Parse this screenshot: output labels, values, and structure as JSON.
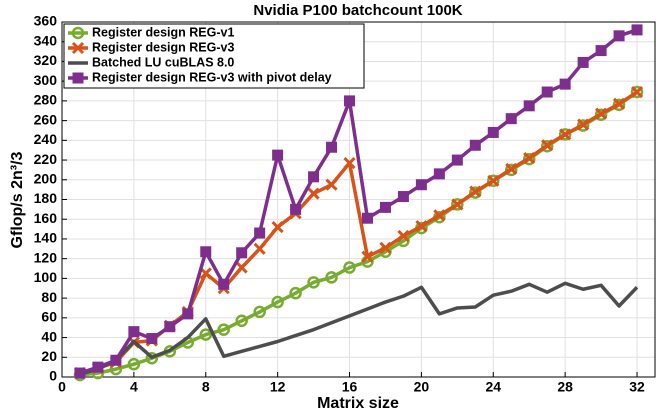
{
  "chart_data": {
    "type": "line",
    "title": "Nvidia P100 batchcount 100K",
    "x_label": "Matrix size",
    "y_label": "Gflop/s 2n³/3",
    "x": [
      1,
      2,
      3,
      4,
      5,
      6,
      7,
      8,
      9,
      10,
      11,
      12,
      13,
      14,
      15,
      16,
      17,
      18,
      19,
      20,
      21,
      22,
      23,
      24,
      25,
      26,
      27,
      28,
      29,
      30,
      31,
      32
    ],
    "series": [
      {
        "name": "Register design REG-v1",
        "color": "#77ac30",
        "marker": "circle",
        "values": [
          2,
          4,
          8,
          13,
          19,
          26,
          35,
          43,
          48,
          57,
          66,
          76,
          85,
          96,
          101,
          111,
          117,
          127,
          138,
          151,
          162,
          175,
          187,
          199,
          210,
          221,
          234,
          246,
          255,
          266,
          276,
          289
        ]
      },
      {
        "name": "Register design REG-v3",
        "color": "#d95319",
        "marker": "x",
        "values": [
          4,
          9,
          15,
          35,
          37,
          52,
          66,
          105,
          90,
          111,
          130,
          152,
          166,
          186,
          195,
          217,
          122,
          131,
          143,
          153,
          164,
          175,
          188,
          199,
          211,
          222,
          235,
          246,
          256,
          267,
          277,
          289
        ]
      },
      {
        "name": "Batched LU cuBLAS 8.0",
        "color": "#4d4d4d",
        "marker": "none",
        "values": [
          3,
          8,
          17,
          36,
          20,
          27,
          40,
          59,
          21,
          26,
          31,
          36,
          42,
          48,
          55,
          62,
          69,
          76,
          82,
          91,
          64,
          70,
          71,
          83,
          87,
          94,
          86,
          95,
          89,
          93,
          72,
          91
        ]
      },
      {
        "name": "Register design REG-v3 with pivot delay",
        "color": "#7e2f8e",
        "marker": "square",
        "values": [
          4,
          10,
          17,
          46,
          39,
          51,
          64,
          127,
          94,
          126,
          146,
          225,
          170,
          203,
          233,
          280,
          161,
          172,
          183,
          195,
          206,
          220,
          235,
          248,
          262,
          275,
          289,
          297,
          319,
          331,
          346,
          352
        ]
      }
    ],
    "xlim": [
      0,
      33
    ],
    "ylim": [
      0,
      360
    ],
    "xticks": [
      0,
      4,
      8,
      12,
      16,
      20,
      24,
      28,
      32
    ],
    "yticks": [
      0,
      20,
      40,
      60,
      80,
      100,
      120,
      140,
      160,
      180,
      200,
      220,
      240,
      260,
      280,
      300,
      320,
      340,
      360
    ],
    "grid": true,
    "legend": "top-left"
  }
}
